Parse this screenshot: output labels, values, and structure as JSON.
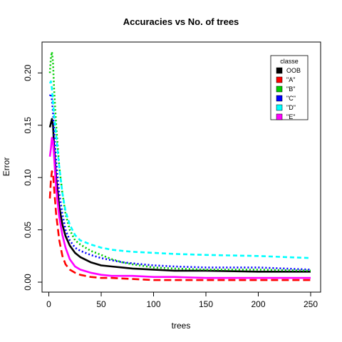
{
  "chart_data": {
    "type": "line",
    "title": "Accuracies vs No. of trees",
    "xlabel": "trees",
    "ylabel": "Error",
    "xlim": [
      1,
      250
    ],
    "ylim": [
      0.0,
      0.22
    ],
    "x_ticks": [
      0,
      50,
      100,
      150,
      200,
      250
    ],
    "y_ticks": [
      0.0,
      0.05,
      0.1,
      0.15,
      0.2
    ],
    "y_tick_labels": [
      "0.00",
      "0.05",
      "0.10",
      "0.15",
      "0.20"
    ],
    "legend": {
      "title": "classe",
      "position": "top-right"
    },
    "series": [
      {
        "name": "OOB",
        "color": "#000000",
        "dash": "solid",
        "points": [
          [
            1,
            0.148
          ],
          [
            2,
            0.152
          ],
          [
            3,
            0.156
          ],
          [
            4,
            0.15
          ],
          [
            5,
            0.13
          ],
          [
            7,
            0.1
          ],
          [
            10,
            0.072
          ],
          [
            13,
            0.055
          ],
          [
            16,
            0.044
          ],
          [
            20,
            0.035
          ],
          [
            25,
            0.028
          ],
          [
            30,
            0.024
          ],
          [
            40,
            0.019
          ],
          [
            50,
            0.016
          ],
          [
            60,
            0.015
          ],
          [
            70,
            0.014
          ],
          [
            80,
            0.013
          ],
          [
            100,
            0.012
          ],
          [
            120,
            0.011
          ],
          [
            150,
            0.011
          ],
          [
            200,
            0.01
          ],
          [
            250,
            0.01
          ]
        ]
      },
      {
        "name": "\"A\"",
        "color": "#ff0000",
        "dash": "long",
        "points": [
          [
            1,
            0.08
          ],
          [
            2,
            0.098
          ],
          [
            3,
            0.106
          ],
          [
            4,
            0.104
          ],
          [
            5,
            0.09
          ],
          [
            7,
            0.065
          ],
          [
            10,
            0.04
          ],
          [
            13,
            0.025
          ],
          [
            16,
            0.017
          ],
          [
            20,
            0.012
          ],
          [
            25,
            0.009
          ],
          [
            30,
            0.007
          ],
          [
            40,
            0.005
          ],
          [
            50,
            0.004
          ],
          [
            60,
            0.004
          ],
          [
            80,
            0.003
          ],
          [
            100,
            0.002
          ],
          [
            120,
            0.002
          ],
          [
            150,
            0.002
          ],
          [
            200,
            0.002
          ],
          [
            250,
            0.002
          ]
        ]
      },
      {
        "name": "\"B\"",
        "color": "#00cd00",
        "dash": "dot",
        "points": [
          [
            1,
            0.2
          ],
          [
            2,
            0.215
          ],
          [
            3,
            0.22
          ],
          [
            4,
            0.21
          ],
          [
            5,
            0.185
          ],
          [
            7,
            0.15
          ],
          [
            10,
            0.11
          ],
          [
            13,
            0.085
          ],
          [
            16,
            0.065
          ],
          [
            20,
            0.05
          ],
          [
            25,
            0.04
          ],
          [
            30,
            0.036
          ],
          [
            40,
            0.03
          ],
          [
            50,
            0.026
          ],
          [
            60,
            0.022
          ],
          [
            70,
            0.019
          ],
          [
            80,
            0.017
          ],
          [
            100,
            0.014
          ],
          [
            120,
            0.013
          ],
          [
            150,
            0.012
          ],
          [
            200,
            0.012
          ],
          [
            250,
            0.011
          ]
        ]
      },
      {
        "name": "\"C\"",
        "color": "#0000ff",
        "dash": "dot",
        "points": [
          [
            1,
            0.178
          ],
          [
            2,
            0.18
          ],
          [
            3,
            0.174
          ],
          [
            4,
            0.162
          ],
          [
            5,
            0.145
          ],
          [
            7,
            0.115
          ],
          [
            10,
            0.085
          ],
          [
            13,
            0.065
          ],
          [
            16,
            0.05
          ],
          [
            20,
            0.04
          ],
          [
            25,
            0.033
          ],
          [
            30,
            0.03
          ],
          [
            40,
            0.026
          ],
          [
            50,
            0.023
          ],
          [
            60,
            0.021
          ],
          [
            70,
            0.019
          ],
          [
            80,
            0.018
          ],
          [
            100,
            0.016
          ],
          [
            120,
            0.015
          ],
          [
            150,
            0.014
          ],
          [
            200,
            0.014
          ],
          [
            250,
            0.012
          ]
        ]
      },
      {
        "name": "\"D\"",
        "color": "#00ffff",
        "dash": "dash",
        "points": [
          [
            1,
            0.19
          ],
          [
            2,
            0.192
          ],
          [
            3,
            0.185
          ],
          [
            4,
            0.172
          ],
          [
            5,
            0.16
          ],
          [
            7,
            0.14
          ],
          [
            10,
            0.11
          ],
          [
            13,
            0.085
          ],
          [
            16,
            0.068
          ],
          [
            20,
            0.055
          ],
          [
            25,
            0.045
          ],
          [
            30,
            0.04
          ],
          [
            40,
            0.036
          ],
          [
            50,
            0.033
          ],
          [
            60,
            0.031
          ],
          [
            70,
            0.03
          ],
          [
            80,
            0.029
          ],
          [
            100,
            0.028
          ],
          [
            120,
            0.027
          ],
          [
            150,
            0.026
          ],
          [
            200,
            0.025
          ],
          [
            250,
            0.023
          ]
        ]
      },
      {
        "name": "\"E\"",
        "color": "#ff00ff",
        "dash": "solid",
        "points": [
          [
            1,
            0.12
          ],
          [
            2,
            0.128
          ],
          [
            3,
            0.138
          ],
          [
            4,
            0.135
          ],
          [
            5,
            0.12
          ],
          [
            7,
            0.09
          ],
          [
            10,
            0.062
          ],
          [
            13,
            0.045
          ],
          [
            16,
            0.033
          ],
          [
            20,
            0.022
          ],
          [
            25,
            0.015
          ],
          [
            30,
            0.012
          ],
          [
            40,
            0.009
          ],
          [
            50,
            0.007
          ],
          [
            60,
            0.006
          ],
          [
            80,
            0.006
          ],
          [
            100,
            0.005
          ],
          [
            120,
            0.005
          ],
          [
            150,
            0.004
          ],
          [
            200,
            0.004
          ],
          [
            250,
            0.004
          ]
        ]
      }
    ]
  }
}
